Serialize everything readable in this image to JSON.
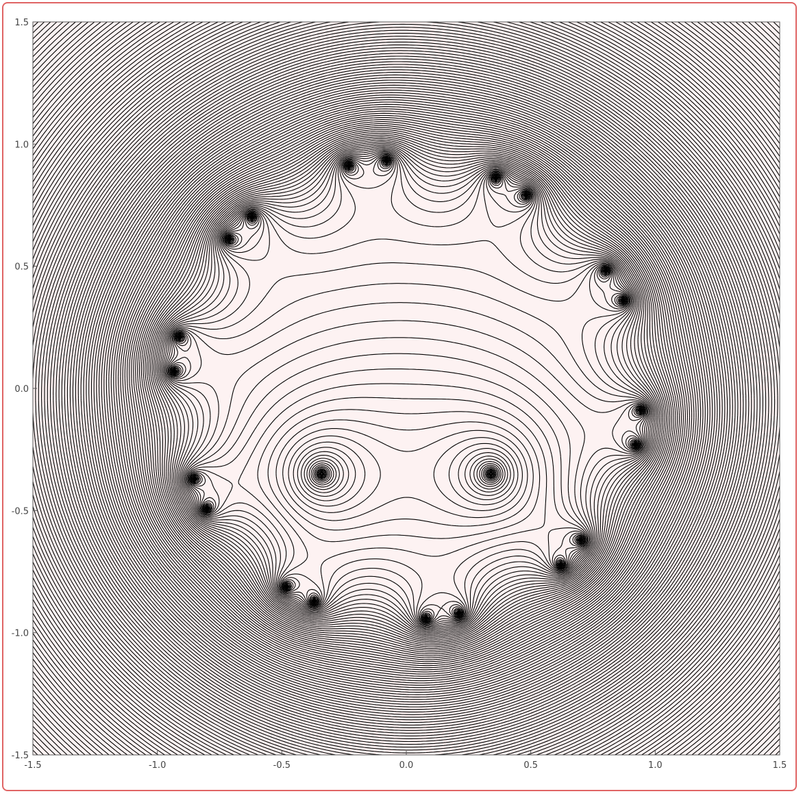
{
  "chart_data": {
    "type": "contour",
    "title": "",
    "xlabel": "",
    "ylabel": "",
    "xlim": [
      -1.5,
      1.5
    ],
    "ylim": [
      -1.5,
      1.5
    ],
    "x_ticks": [
      "-1.5",
      "-1.0",
      "-0.5",
      "0.0",
      "0.5",
      "1.0",
      "1.5"
    ],
    "y_ticks": [
      "1.5",
      "1.0",
      "0.5",
      "0.0",
      "-0.5",
      "-1.0",
      "-1.5"
    ],
    "x_tick_values": [
      -1.5,
      -1.0,
      -0.5,
      0.0,
      0.5,
      1.0,
      1.5
    ],
    "y_tick_values": [
      1.5,
      1.0,
      0.5,
      0.0,
      -0.5,
      -1.0,
      -1.5
    ],
    "zeros": [
      [
        -0.34,
        -0.35
      ],
      [
        0.34,
        -0.35
      ],
      [
        -0.23,
        0.91
      ],
      [
        -0.08,
        0.93
      ],
      [
        0.36,
        0.86
      ],
      [
        0.48,
        0.79
      ],
      [
        -0.62,
        0.7
      ],
      [
        -0.71,
        0.61
      ],
      [
        0.8,
        0.48
      ],
      [
        0.87,
        0.36
      ],
      [
        -0.91,
        0.21
      ],
      [
        -0.93,
        0.07
      ],
      [
        0.94,
        -0.09
      ],
      [
        0.92,
        -0.23
      ],
      [
        -0.85,
        -0.37
      ],
      [
        -0.8,
        -0.49
      ],
      [
        0.7,
        -0.62
      ],
      [
        0.62,
        -0.72
      ],
      [
        -0.48,
        -0.81
      ],
      [
        -0.37,
        -0.87
      ],
      [
        0.08,
        -0.94
      ],
      [
        0.21,
        -0.92
      ]
    ],
    "grid": false,
    "legend": "none",
    "colors": {
      "background": "#fdf2f2",
      "lines": "#000000",
      "frame_border": "#e06464",
      "tick_label": "#444444"
    }
  }
}
